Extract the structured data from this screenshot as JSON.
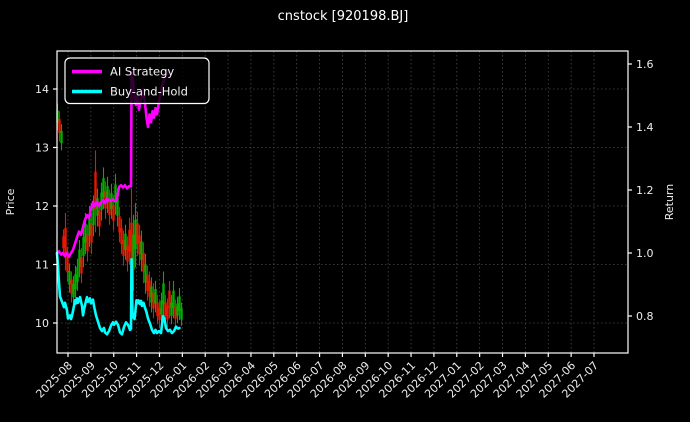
{
  "title": "cnstock [920198.BJ]",
  "legend": {
    "position": "upper left",
    "items": [
      {
        "label": "AI Strategy",
        "color": "#ff00ff"
      },
      {
        "label": "Buy-and-Hold",
        "color": "#00ffff"
      }
    ]
  },
  "chart_data": {
    "type": "candlestick+line",
    "title": "cnstock [920198.BJ]",
    "xlabel": "",
    "ylabel_left": "Price",
    "ylabel_right": "Return",
    "grid": true,
    "background": "#000000",
    "legend_position": "upper left",
    "colors": {
      "up": "#00b000",
      "down": "#e81800",
      "ai": "#ff00ff",
      "bh": "#00ffff",
      "frame": "#ffffff",
      "grid": "#4a4a4a"
    },
    "x_ticks": [
      "2025-08",
      "2025-09",
      "2025-10",
      "2025-11",
      "2025-12",
      "2026-01",
      "2026-02",
      "2026-03",
      "2026-04",
      "2026-05",
      "2026-06",
      "2026-07",
      "2026-08",
      "2026-09",
      "2026-10",
      "2026-11",
      "2026-12",
      "2027-01",
      "2027-02",
      "2027-03",
      "2027-04",
      "2027-05",
      "2027-06",
      "2027-07"
    ],
    "y_left": {
      "ticks": [
        10,
        11,
        12,
        13,
        14
      ],
      "range": [
        9.49,
        14.65
      ]
    },
    "y_right": {
      "ticks": [
        0.8,
        1.0,
        1.2,
        1.4,
        1.6
      ],
      "range": [
        0.68,
        1.64
      ]
    },
    "candles": [
      [
        57.5,
        13.3,
        13.75,
        "g"
      ],
      [
        59.5,
        13.1,
        13.62,
        "r"
      ],
      [
        61.5,
        12.95,
        13.4,
        "g"
      ],
      [
        63.5,
        11.15,
        11.6,
        "r"
      ],
      [
        65.5,
        10.9,
        11.88,
        "r"
      ],
      [
        67.5,
        10.7,
        11.3,
        "r"
      ],
      [
        69.5,
        10.52,
        11.02,
        "g"
      ],
      [
        71.5,
        10.35,
        10.88,
        "r"
      ],
      [
        73.5,
        10.3,
        10.8,
        "g"
      ],
      [
        75.5,
        10.42,
        10.98,
        "g"
      ],
      [
        77.5,
        10.55,
        11.1,
        "g"
      ],
      [
        79.5,
        10.78,
        11.42,
        "g"
      ],
      [
        81.5,
        10.68,
        11.28,
        "r"
      ],
      [
        83.5,
        10.95,
        11.65,
        "g"
      ],
      [
        85.5,
        11.18,
        11.88,
        "g"
      ],
      [
        87.5,
        11.05,
        11.68,
        "r"
      ],
      [
        89.5,
        11.3,
        12.0,
        "g"
      ],
      [
        91.5,
        11.18,
        11.88,
        "r"
      ],
      [
        93.5,
        11.48,
        12.18,
        "g"
      ],
      [
        95.5,
        11.55,
        12.95,
        "r"
      ],
      [
        97.5,
        11.65,
        12.3,
        "g"
      ],
      [
        99.5,
        11.48,
        12.08,
        "r"
      ],
      [
        101.5,
        11.75,
        12.4,
        "g"
      ],
      [
        103.5,
        11.95,
        12.66,
        "g"
      ],
      [
        105.5,
        11.78,
        12.42,
        "r"
      ],
      [
        107.5,
        11.88,
        12.5,
        "g"
      ],
      [
        109.5,
        11.68,
        12.28,
        "r"
      ],
      [
        111.5,
        11.78,
        12.38,
        "g"
      ],
      [
        113.5,
        11.58,
        12.18,
        "r"
      ],
      [
        115.5,
        11.85,
        12.55,
        "g"
      ],
      [
        117.5,
        11.65,
        12.3,
        "g"
      ],
      [
        119.5,
        11.38,
        11.98,
        "r"
      ],
      [
        121.5,
        11.18,
        11.78,
        "r"
      ],
      [
        123.5,
        10.98,
        11.58,
        "r"
      ],
      [
        125.5,
        11.08,
        11.68,
        "g"
      ],
      [
        127.5,
        10.88,
        11.48,
        "r"
      ],
      [
        129.5,
        11.0,
        11.8,
        "r"
      ],
      [
        131.5,
        10.05,
        12.3,
        "r"
      ],
      [
        133.5,
        10.55,
        11.85,
        "g"
      ],
      [
        135.5,
        10.95,
        12.05,
        "g"
      ],
      [
        137.5,
        11.15,
        11.9,
        "r"
      ],
      [
        139.5,
        10.98,
        11.68,
        "r"
      ],
      [
        141.5,
        10.88,
        11.58,
        "g"
      ],
      [
        143.5,
        10.68,
        11.38,
        "r"
      ],
      [
        145.5,
        10.5,
        11.18,
        "g"
      ],
      [
        147.5,
        10.38,
        10.98,
        "r"
      ],
      [
        149.5,
        10.28,
        10.88,
        "r"
      ],
      [
        151.5,
        10.18,
        10.78,
        "g"
      ],
      [
        153.5,
        10.08,
        10.68,
        "r"
      ],
      [
        155.5,
        10.18,
        10.72,
        "g"
      ],
      [
        157.5,
        9.98,
        10.48,
        "r"
      ],
      [
        159.5,
        9.92,
        10.38,
        "r"
      ],
      [
        161.5,
        10.0,
        10.52,
        "g"
      ],
      [
        163.5,
        10.1,
        10.88,
        "g"
      ],
      [
        165.5,
        9.98,
        10.48,
        "r"
      ],
      [
        167.5,
        9.92,
        10.42,
        "r"
      ],
      [
        169.5,
        10.08,
        10.72,
        "r"
      ],
      [
        171.5,
        9.98,
        10.48,
        "g"
      ],
      [
        173.5,
        10.08,
        10.72,
        "g"
      ],
      [
        175.5,
        9.95,
        10.4,
        "r"
      ],
      [
        177.5,
        10.0,
        10.45,
        "g"
      ],
      [
        179.5,
        10.05,
        10.6,
        "g"
      ],
      [
        181.5,
        9.95,
        10.35,
        "g"
      ]
    ],
    "series": [
      {
        "name": "AI Strategy",
        "axis": "right",
        "color": "#ff00ff",
        "width": 2.6,
        "points": [
          [
            57,
            1.0
          ],
          [
            59,
            1.005
          ],
          [
            61,
            0.995
          ],
          [
            63,
            1.0
          ],
          [
            65,
            0.99
          ],
          [
            67,
            1.0
          ],
          [
            69,
            0.988
          ],
          [
            71,
            1.0
          ],
          [
            73,
            1.01
          ],
          [
            75,
            1.03
          ],
          [
            77,
            1.05
          ],
          [
            79,
            1.068
          ],
          [
            81,
            1.058
          ],
          [
            83,
            1.082
          ],
          [
            85,
            1.105
          ],
          [
            87,
            1.12
          ],
          [
            89,
            1.112
          ],
          [
            91,
            1.14
          ],
          [
            93,
            1.162
          ],
          [
            95,
            1.15
          ],
          [
            97,
            1.163
          ],
          [
            99,
            1.15
          ],
          [
            101,
            1.16
          ],
          [
            103,
            1.168
          ],
          [
            105,
            1.158
          ],
          [
            107,
            1.172
          ],
          [
            109,
            1.168
          ],
          [
            111,
            1.165
          ],
          [
            113,
            1.17
          ],
          [
            115,
            1.165
          ],
          [
            117,
            1.172
          ],
          [
            119,
            1.21
          ],
          [
            121,
            1.215
          ],
          [
            123,
            1.208
          ],
          [
            125,
            1.215
          ],
          [
            127,
            1.205
          ],
          [
            129,
            1.212
          ],
          [
            131,
            1.212
          ],
          [
            131.6,
            1.575
          ],
          [
            133,
            1.545
          ],
          [
            134.5,
            1.5
          ],
          [
            136,
            1.47
          ],
          [
            137.5,
            1.5
          ],
          [
            139,
            1.455
          ],
          [
            140.5,
            1.48
          ],
          [
            142,
            1.5
          ],
          [
            143.5,
            1.52
          ],
          [
            145,
            1.475
          ],
          [
            146.5,
            1.43
          ],
          [
            148,
            1.4
          ],
          [
            149.5,
            1.44
          ],
          [
            151,
            1.415
          ],
          [
            152.5,
            1.45
          ],
          [
            154,
            1.43
          ],
          [
            155.5,
            1.46
          ],
          [
            157,
            1.44
          ],
          [
            158.5,
            1.47
          ],
          [
            160,
            1.5
          ],
          [
            162,
            1.53
          ],
          [
            164,
            1.55
          ],
          [
            166,
            1.565
          ],
          [
            168,
            1.575
          ]
        ]
      },
      {
        "name": "Buy-and-Hold",
        "axis": "right",
        "color": "#00ffff",
        "width": 2.6,
        "points": [
          [
            57,
            1.0
          ],
          [
            58,
            0.96
          ],
          [
            59,
            0.905
          ],
          [
            60,
            0.862
          ],
          [
            62,
            0.845
          ],
          [
            64,
            0.828
          ],
          [
            65,
            0.842
          ],
          [
            67,
            0.818
          ],
          [
            68,
            0.792
          ],
          [
            70,
            0.802
          ],
          [
            71,
            0.79
          ],
          [
            72,
            0.8
          ],
          [
            74,
            0.832
          ],
          [
            75,
            0.85
          ],
          [
            76,
            0.84
          ],
          [
            77,
            0.856
          ],
          [
            78,
            0.842
          ],
          [
            80,
            0.86
          ],
          [
            82,
            0.832
          ],
          [
            83,
            0.802
          ],
          [
            84,
            0.82
          ],
          [
            86,
            0.848
          ],
          [
            87,
            0.86
          ],
          [
            88,
            0.845
          ],
          [
            90,
            0.856
          ],
          [
            91,
            0.84
          ],
          [
            93,
            0.852
          ],
          [
            94,
            0.832
          ],
          [
            96,
            0.802
          ],
          [
            98,
            0.782
          ],
          [
            100,
            0.762
          ],
          [
            102,
            0.752
          ],
          [
            104,
            0.762
          ],
          [
            105,
            0.748
          ],
          [
            107,
            0.742
          ],
          [
            109,
            0.752
          ],
          [
            111,
            0.77
          ],
          [
            113,
            0.78
          ],
          [
            114,
            0.772
          ],
          [
            116,
            0.782
          ],
          [
            118,
            0.772
          ],
          [
            120,
            0.748
          ],
          [
            122,
            0.742
          ],
          [
            124,
            0.765
          ],
          [
            126,
            0.78
          ],
          [
            128,
            0.772
          ],
          [
            130,
            0.756
          ],
          [
            131,
            0.76
          ],
          [
            131.5,
            0.98
          ],
          [
            132.5,
            0.795
          ],
          [
            133.5,
            0.805
          ],
          [
            134.5,
            0.79
          ],
          [
            135.5,
            0.82
          ],
          [
            136.5,
            0.85
          ],
          [
            137.5,
            0.84
          ],
          [
            138.5,
            0.85
          ],
          [
            140,
            0.838
          ],
          [
            141,
            0.848
          ],
          [
            142,
            0.832
          ],
          [
            143.5,
            0.842
          ],
          [
            145,
            0.826
          ],
          [
            146.5,
            0.812
          ],
          [
            148,
            0.792
          ],
          [
            150,
            0.776
          ],
          [
            152,
            0.756
          ],
          [
            154,
            0.746
          ],
          [
            155.5,
            0.756
          ],
          [
            157,
            0.746
          ],
          [
            159,
            0.752
          ],
          [
            161,
            0.746
          ],
          [
            163,
            0.8
          ],
          [
            164.5,
            0.79
          ],
          [
            166,
            0.762
          ],
          [
            168,
            0.752
          ],
          [
            170,
            0.756
          ],
          [
            172,
            0.746
          ],
          [
            174,
            0.752
          ],
          [
            176,
            0.766
          ],
          [
            178,
            0.76
          ],
          [
            179.5,
            0.762
          ]
        ]
      }
    ]
  }
}
